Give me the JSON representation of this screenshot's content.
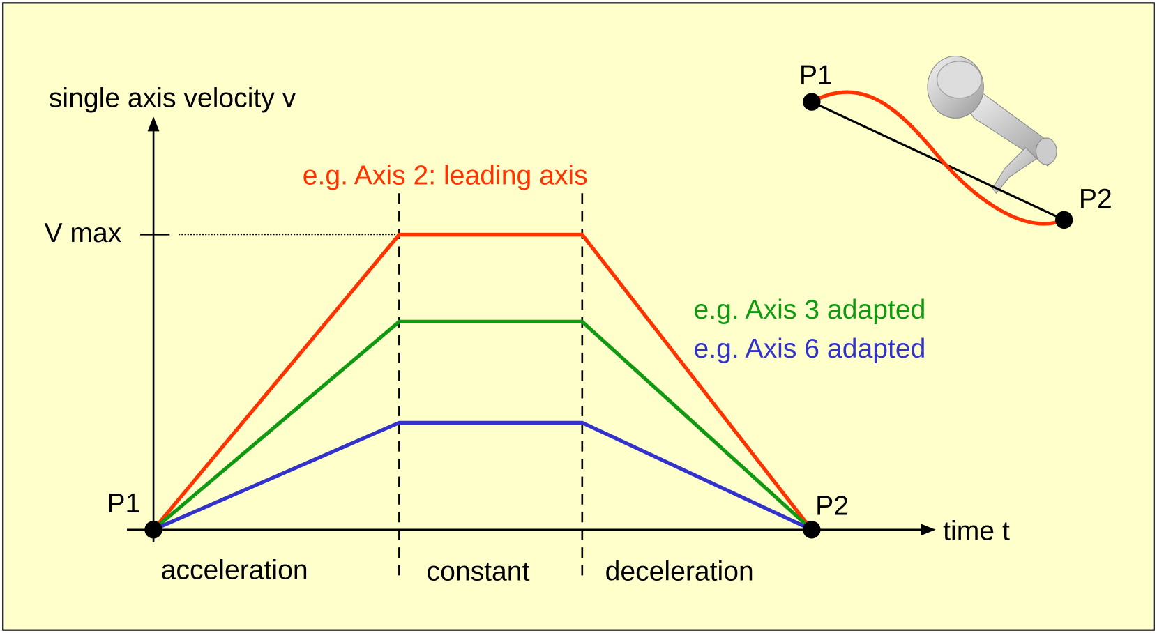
{
  "axes": {
    "y_label": "single axis velocity v",
    "x_label": "time t",
    "vmax_label": "V max"
  },
  "points": {
    "start": "P1",
    "end": "P2"
  },
  "curves": [
    {
      "label": "e.g. Axis 2: leading axis"
    },
    {
      "label": "e.g. Axis 3 adapted"
    },
    {
      "label": "e.g. Axis 6 adapted"
    }
  ],
  "phases": [
    "acceleration",
    "constant",
    "deceleration"
  ],
  "inset": {
    "start": "P1",
    "end": "P2"
  }
}
